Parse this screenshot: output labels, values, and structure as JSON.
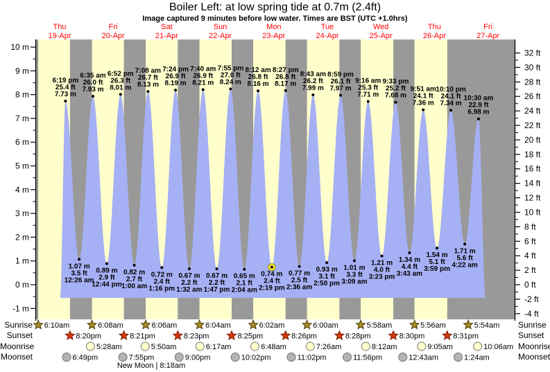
{
  "title": "Boiler Left: at low  spring tide at 0.7m (2.4ft)",
  "subtitle": "Image captured 9 minutes before low water. Times are BST (UTC +1.0hrs)",
  "row_labels": {
    "sunrise": "Sunrise",
    "sunset": "Sunset",
    "moonrise": "Moonrise",
    "moonset": "Moonset"
  },
  "moon_phase_note": "New Moon | 8:18am",
  "colors": {
    "day_band": "#ffffcc",
    "night_band": "#999999",
    "tide_fill": "#a6b0f4",
    "day_label_red": "#ff0000",
    "sunrise_star": "#a68c28",
    "sunrise_star_edge": "#4a3b00",
    "sunset_star": "#d33b10",
    "sunset_star_edge": "#791800",
    "moonrise_circle": "#ffffcc",
    "moonrise_circle_edge": "#8a8a8a",
    "moonset_circle": "#b4b4b4",
    "moonset_circle_edge": "#7f7f7f",
    "marker_yellow": "#ffe933"
  },
  "chart_data": {
    "type": "area",
    "title": "Boiler Left: at low  spring tide at 0.7m (2.4ft)",
    "ylabel_left_unit": "m",
    "ylabel_right_unit": "ft",
    "y_axis_left": {
      "labels": [
        "10 m",
        "9 m",
        "8 m",
        "7 m",
        "6 m",
        "5 m",
        "4 m",
        "3 m",
        "2 m",
        "1 m",
        "0 m",
        "-1 m"
      ],
      "max": 10,
      "min": -1,
      "step": 1
    },
    "y_axis_right": {
      "labels": [
        "32 ft",
        "30 ft",
        "28 ft",
        "26 ft",
        "24 ft",
        "22 ft",
        "20 ft",
        "18 ft",
        "16 ft",
        "14 ft",
        "12 ft",
        "10 ft",
        "8 ft",
        "6 ft",
        "4 ft",
        "2 ft",
        "0 ft",
        "-2 ft",
        "-4 ft"
      ],
      "max": 32,
      "min": -4,
      "step": 2
    },
    "days": [
      {
        "name": "Thu",
        "date": "19-Apr"
      },
      {
        "name": "Fri",
        "date": "20-Apr"
      },
      {
        "name": "Sat",
        "date": "21-Apr"
      },
      {
        "name": "Sun",
        "date": "22-Apr"
      },
      {
        "name": "Mon",
        "date": "23-Apr"
      },
      {
        "name": "Tue",
        "date": "24-Apr"
      },
      {
        "name": "Wed",
        "date": "25-Apr"
      },
      {
        "name": "Thu",
        "date": "26-Apr"
      },
      {
        "name": "Fri",
        "date": "27-Apr"
      }
    ],
    "tide_extremes": [
      {
        "type": "high",
        "day": 0,
        "time": "6:19 pm",
        "height_m": 7.73,
        "height_ft": 25.4
      },
      {
        "type": "low",
        "day": 1,
        "time": "12:26 am",
        "height_m": 1.07,
        "height_ft": 3.5
      },
      {
        "type": "high",
        "day": 1,
        "time": "6:35 am",
        "height_m": 7.93,
        "height_ft": 26.0
      },
      {
        "type": "low",
        "day": 1,
        "time": "12:44 pm",
        "height_m": 0.89,
        "height_ft": 2.9
      },
      {
        "type": "high",
        "day": 1,
        "time": "6:52 pm",
        "height_m": 8.01,
        "height_ft": 26.3
      },
      {
        "type": "low",
        "day": 2,
        "time": "1:00 am",
        "height_m": 0.82,
        "height_ft": 2.7
      },
      {
        "type": "high",
        "day": 2,
        "time": "7:08 am",
        "height_m": 8.13,
        "height_ft": 26.7
      },
      {
        "type": "low",
        "day": 2,
        "time": "1:16 pm",
        "height_m": 0.72,
        "height_ft": 2.4
      },
      {
        "type": "high",
        "day": 2,
        "time": "7:24 pm",
        "height_m": 8.19,
        "height_ft": 26.9
      },
      {
        "type": "low",
        "day": 3,
        "time": "1:32 am",
        "height_m": 0.67,
        "height_ft": 2.2
      },
      {
        "type": "high",
        "day": 3,
        "time": "7:40 am",
        "height_m": 8.21,
        "height_ft": 26.9
      },
      {
        "type": "low",
        "day": 3,
        "time": "1:47 pm",
        "height_m": 0.67,
        "height_ft": 2.2
      },
      {
        "type": "high",
        "day": 3,
        "time": "7:55 pm",
        "height_m": 8.24,
        "height_ft": 27.0
      },
      {
        "type": "low",
        "day": 4,
        "time": "2:04 am",
        "height_m": 0.65,
        "height_ft": 2.1
      },
      {
        "type": "high",
        "day": 4,
        "time": "8:12 am",
        "height_m": 8.16,
        "height_ft": 26.8
      },
      {
        "type": "low",
        "day": 4,
        "time": "2:19 pm",
        "height_m": 0.74,
        "height_ft": 2.4,
        "current": true
      },
      {
        "type": "high",
        "day": 4,
        "time": "8:27 pm",
        "height_m": 8.17,
        "height_ft": 26.8
      },
      {
        "type": "low",
        "day": 5,
        "time": "2:36 am",
        "height_m": 0.77,
        "height_ft": 2.5
      },
      {
        "type": "high",
        "day": 5,
        "time": "8:43 am",
        "height_m": 7.99,
        "height_ft": 26.2
      },
      {
        "type": "low",
        "day": 5,
        "time": "2:50 pm",
        "height_m": 0.93,
        "height_ft": 3.1
      },
      {
        "type": "high",
        "day": 5,
        "time": "8:59 pm",
        "height_m": 7.97,
        "height_ft": 26.1
      },
      {
        "type": "low",
        "day": 6,
        "time": "3:09 am",
        "height_m": 1.01,
        "height_ft": 3.3
      },
      {
        "type": "high",
        "day": 6,
        "time": "9:16 am",
        "height_m": 7.71,
        "height_ft": 25.3
      },
      {
        "type": "low",
        "day": 6,
        "time": "3:23 pm",
        "height_m": 1.21,
        "height_ft": 4.0
      },
      {
        "type": "high",
        "day": 6,
        "time": "9:33 pm",
        "height_m": 7.68,
        "height_ft": 25.2
      },
      {
        "type": "low",
        "day": 7,
        "time": "3:43 am",
        "height_m": 1.34,
        "height_ft": 4.4
      },
      {
        "type": "high",
        "day": 7,
        "time": "9:51 am",
        "height_m": 7.36,
        "height_ft": 24.1
      },
      {
        "type": "low",
        "day": 7,
        "time": "3:59 pm",
        "height_m": 1.54,
        "height_ft": 5.1
      },
      {
        "type": "high",
        "day": 7,
        "time": "10:10 pm",
        "height_m": 7.34,
        "height_ft": 24.1
      },
      {
        "type": "low",
        "day": 8,
        "time": "4:22 am",
        "height_m": 1.71,
        "height_ft": 5.6
      },
      {
        "type": "high",
        "day": 8,
        "time": "10:30 am",
        "height_m": 6.98,
        "height_ft": 22.9
      }
    ],
    "sun": {
      "sunrise": [
        {
          "day": 0,
          "time": "6:10am"
        },
        {
          "day": 1,
          "time": "6:08am"
        },
        {
          "day": 2,
          "time": "6:06am"
        },
        {
          "day": 3,
          "time": "6:04am"
        },
        {
          "day": 4,
          "time": "6:02am"
        },
        {
          "day": 5,
          "time": "6:00am"
        },
        {
          "day": 6,
          "time": "5:58am"
        },
        {
          "day": 7,
          "time": "5:56am"
        },
        {
          "day": 8,
          "time": "5:54am"
        }
      ],
      "sunset": [
        {
          "day": 0,
          "time": "8:20pm"
        },
        {
          "day": 1,
          "time": "8:21pm"
        },
        {
          "day": 2,
          "time": "8:23pm"
        },
        {
          "day": 3,
          "time": "8:25pm"
        },
        {
          "day": 4,
          "time": "8:26pm"
        },
        {
          "day": 5,
          "time": "8:28pm"
        },
        {
          "day": 6,
          "time": "8:30pm"
        },
        {
          "day": 7,
          "time": "8:31pm"
        }
      ]
    },
    "moon": {
      "moonrise": [
        {
          "day": 1,
          "time": "5:28am"
        },
        {
          "day": 2,
          "time": "5:50am"
        },
        {
          "day": 3,
          "time": "6:17am"
        },
        {
          "day": 4,
          "time": "6:48am"
        },
        {
          "day": 5,
          "time": "7:26am"
        },
        {
          "day": 6,
          "time": "8:12am"
        },
        {
          "day": 7,
          "time": "9:05am"
        },
        {
          "day": 8,
          "time": "10:06am"
        }
      ],
      "moonset": [
        {
          "day": 0,
          "time": "6:49pm"
        },
        {
          "day": 1,
          "time": "7:55pm"
        },
        {
          "day": 2,
          "time": "9:00pm"
        },
        {
          "day": 3,
          "time": "10:02pm"
        },
        {
          "day": 4,
          "time": "11:02pm"
        },
        {
          "day": 5,
          "time": "11:56pm"
        },
        {
          "day": 7,
          "time": "12:43am"
        },
        {
          "day": 8,
          "time": "1:24am"
        }
      ],
      "phase": "New Moon | 8:18am"
    }
  }
}
